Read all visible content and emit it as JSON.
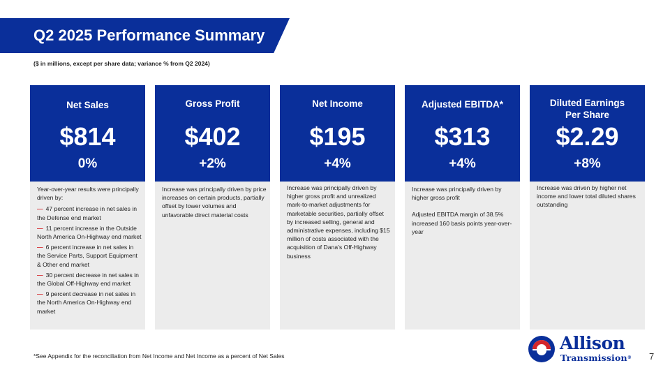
{
  "header": {
    "title": "Q2 2025 Performance Summary",
    "subtitle": "($ in millions, except per share data; variance % from Q2 2024)"
  },
  "cards": [
    {
      "label": "Net Sales",
      "value": "$814",
      "change": "0%",
      "intro": "Year-over-year results were principally driven by:",
      "bullets": [
        "47 percent increase in net sales in the Defense end market",
        "11 percent increase in the Outside North America On-Highway end market",
        "6 percent increase in net sales in the Service Parts, Support Equipment & Other end market",
        "30 percent decrease in net sales in the Global Off-Highway end market",
        "9 percent decrease in net sales in the North America On-Highway end market"
      ]
    },
    {
      "label": "Gross Profit",
      "value": "$402",
      "change": "+2%",
      "text": "Increase was principally driven by price increases on certain products, partially offset by lower volumes and unfavorable direct material costs"
    },
    {
      "label": "Net Income",
      "value": "$195",
      "change": "+4%",
      "text": "Increase was principally driven by higher gross profit and unrealized mark-to-market adjustments for marketable securities, partially offset by increased selling, general and administrative expenses, including $15 million of costs associated with the acquisition of Dana’s Off-Highway business"
    },
    {
      "label": "Adjusted EBITDA*",
      "value": "$313",
      "change": "+4%",
      "text": "Increase was principally driven by higher gross profit",
      "text2": "Adjusted EBITDA margin of 38.5% increased 160 basis points year-over-year"
    },
    {
      "label_line1": "Diluted Earnings",
      "label_line2": "Per Share",
      "value": "$2.29",
      "change": "+8%",
      "text": "Increase was driven by higher net income and lower total diluted shares outstanding"
    }
  ],
  "footer": {
    "footnote": "*See Appendix for the reconciliation from Net Income and Net Income as a percent of Net Sales",
    "page_number": "7"
  },
  "logo": {
    "word1": "Allison",
    "word2": "Transmission",
    "reg": "®"
  },
  "colors": {
    "brand_blue": "#0a2f9a",
    "accent_red": "#d4262b",
    "card_bg": "#ececec"
  }
}
